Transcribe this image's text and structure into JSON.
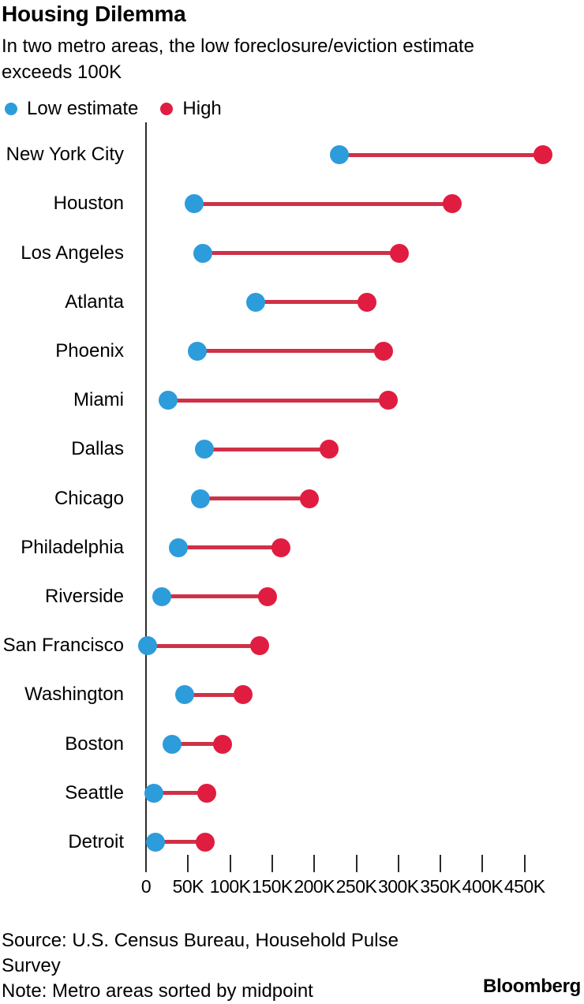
{
  "header": {
    "title": "Housing Dilemma",
    "subtitle_lines": [
      "In two metro areas, the low foreclosure/eviction estimate",
      "exceeds 100K"
    ]
  },
  "legend": {
    "items": [
      {
        "label": "Low estimate",
        "color": "#2d9cdb"
      },
      {
        "label": "High",
        "color": "#e01d40"
      }
    ]
  },
  "chart_data": {
    "type": "dumbbell",
    "title": "Housing Dilemma",
    "categories": [
      "New York City",
      "Houston",
      "Los Angeles",
      "Atlanta",
      "Phoenix",
      "Miami",
      "Dallas",
      "Chicago",
      "Philadelphia",
      "Riverside",
      "San Francisco",
      "Washington",
      "Boston",
      "Seattle",
      "Detroit"
    ],
    "series": [
      {
        "name": "Low estimate",
        "color": "#2d9cdb",
        "values": [
          230,
          57,
          68,
          130,
          61,
          26,
          69,
          65,
          38,
          19,
          2,
          46,
          31,
          9,
          11
        ]
      },
      {
        "name": "High",
        "color": "#e01d40",
        "values": [
          472,
          364,
          301,
          263,
          282,
          288,
          218,
          194,
          160,
          144,
          135,
          115,
          91,
          72,
          70
        ]
      }
    ],
    "unit": "thousands",
    "connector_color": "#cf3148",
    "x_axis": {
      "tick_labels": [
        "0",
        "50K",
        "100K",
        "150K",
        "200K",
        "250K",
        "300K",
        "350K",
        "400K",
        "450K"
      ],
      "tick_values_thousands": [
        0,
        50,
        100,
        150,
        200,
        250,
        300,
        350,
        400,
        450
      ],
      "xlim_thousands": [
        0,
        488
      ]
    },
    "legend_position": "top",
    "grid": false
  },
  "footer": {
    "source_lines": [
      "Source: U.S. Census Bureau, Household Pulse",
      "Survey"
    ],
    "note": "Note: Metro areas sorted by midpoint",
    "brand": "Bloomberg"
  }
}
